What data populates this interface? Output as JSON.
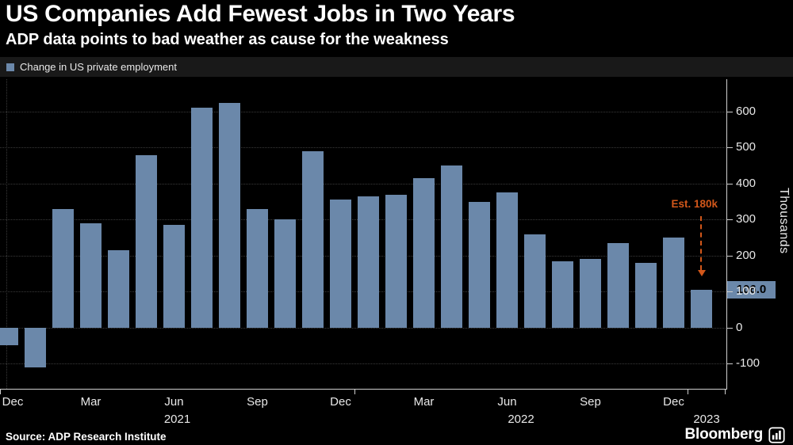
{
  "header": {
    "title": "US Companies Add Fewest Jobs in Two Years",
    "subtitle": "ADP data points to bad weather as cause for the weakness"
  },
  "legend": {
    "label": "Change in US private employment"
  },
  "chart_data": {
    "type": "bar",
    "series_name": "Change in US private employment",
    "unit_label": "Thousands",
    "bar_color": "#6b88aa",
    "grid": true,
    "legend_position": "top-left",
    "ylim": [
      -170,
      690
    ],
    "yticks": [
      600,
      500,
      400,
      300,
      200,
      100,
      0,
      -100
    ],
    "x": [
      "Dec 2020",
      "Jan 2021",
      "Feb 2021",
      "Mar 2021",
      "Apr 2021",
      "May 2021",
      "Jun 2021",
      "Jul 2021",
      "Aug 2021",
      "Sep 2021",
      "Oct 2021",
      "Nov 2021",
      "Dec 2021",
      "Jan 2022",
      "Feb 2022",
      "Mar 2022",
      "Apr 2022",
      "May 2022",
      "Jun 2022",
      "Jul 2022",
      "Aug 2022",
      "Sep 2022",
      "Oct 2022",
      "Nov 2022",
      "Dec 2022",
      "Jan 2023"
    ],
    "values": [
      -50,
      -110,
      330,
      290,
      215,
      480,
      285,
      610,
      625,
      330,
      300,
      490,
      355,
      365,
      370,
      415,
      450,
      350,
      375,
      260,
      185,
      190,
      235,
      180,
      250,
      106
    ],
    "x_ticks": [
      {
        "label": "Dec",
        "index": 0
      },
      {
        "label": "Mar",
        "index": 3
      },
      {
        "label": "Jun",
        "index": 6
      },
      {
        "label": "Sep",
        "index": 9
      },
      {
        "label": "Dec",
        "index": 12
      },
      {
        "label": "Mar",
        "index": 15
      },
      {
        "label": "Jun",
        "index": 18
      },
      {
        "label": "Sep",
        "index": 21
      },
      {
        "label": "Dec",
        "index": 24
      }
    ],
    "years": [
      "2021",
      "2022",
      "2023"
    ],
    "year_start_indices": [
      13,
      25
    ],
    "annotation": {
      "text": "Est. 180k",
      "value": 180,
      "color": "#d2571a"
    },
    "last_value": {
      "text": "106.0",
      "value": 106
    }
  },
  "footer": {
    "source": "Source: ADP Research Institute",
    "brand": "Bloomberg"
  }
}
